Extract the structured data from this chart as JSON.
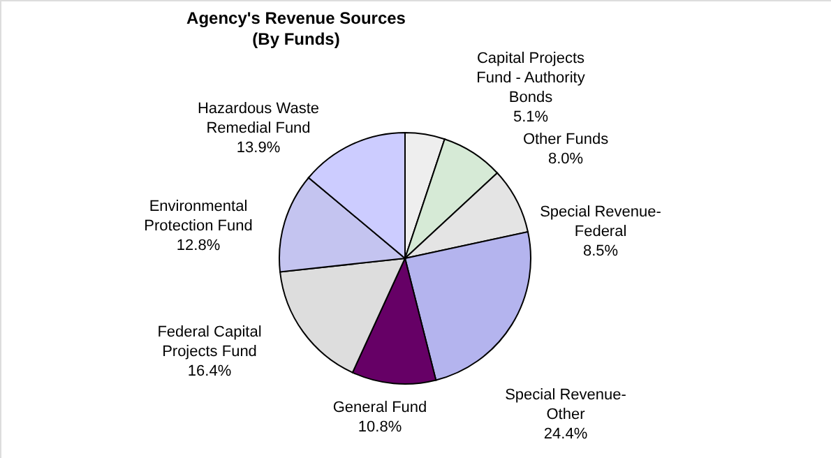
{
  "chart_data": {
    "type": "pie",
    "title": "Agency's Revenue Sources\n(By Funds)",
    "categories": [
      "Capital Projects Fund - Authority Bonds",
      "Other Funds",
      "Special Revenue-Federal",
      "Special Revenue-Other",
      "General Fund",
      "Federal Capital Projects Fund",
      "Environmental Protection Fund",
      "Hazardous Waste Remedial Fund"
    ],
    "values": [
      5.1,
      8.0,
      8.5,
      24.4,
      10.8,
      16.4,
      12.8,
      13.9
    ],
    "value_labels": [
      "5.1%",
      "8.0%",
      "8.5%",
      "24.4%",
      "10.8%",
      "16.4%",
      "12.8%",
      "13.9%"
    ],
    "colors": [
      "#eeeeee",
      "#d6ead6",
      "#e4e4e4",
      "#b4b4ee",
      "#660066",
      "#dddddd",
      "#c4c4f0",
      "#ccccff"
    ]
  }
}
